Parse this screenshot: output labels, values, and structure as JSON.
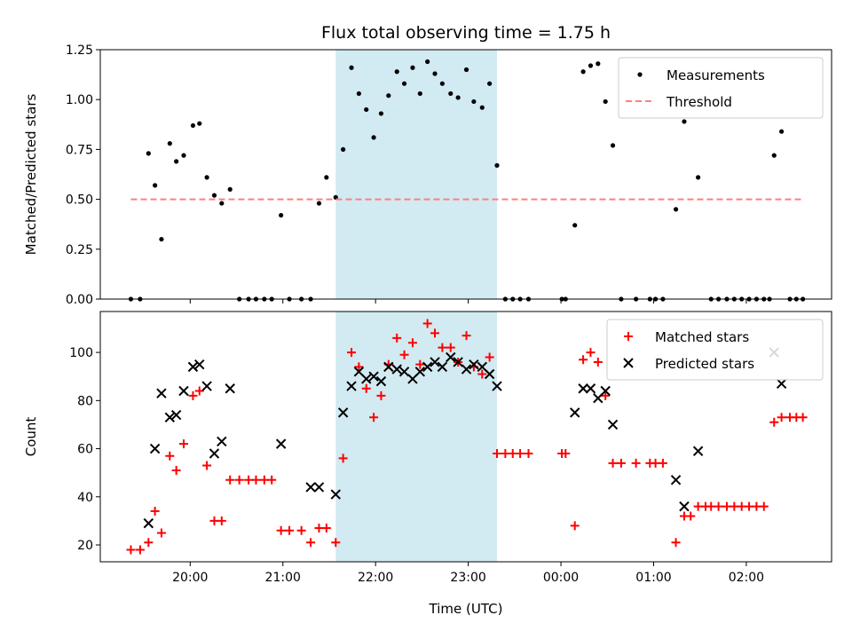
{
  "chart_data": {
    "type": "scatter",
    "title": "Flux total observing time = 1.75 h",
    "xlabel": "Time (UTC)",
    "x_axis": {
      "unit": "hours since 19:00 UTC (same night, crosses midnight)",
      "xlim": [
        0.03,
        7.92
      ],
      "ticks": [
        1,
        2,
        3,
        4,
        5,
        6,
        7
      ],
      "tick_labels": [
        "20:00",
        "21:00",
        "22:00",
        "23:00",
        "00:00",
        "01:00",
        "02:00"
      ]
    },
    "shaded_interval": {
      "x_start": 2.57,
      "x_end": 4.31,
      "color": "#add8e6"
    },
    "panels": [
      {
        "id": "ratio",
        "ylabel": "Matched/Predicted stars",
        "ylim": [
          0,
          1.25
        ],
        "yticks": [
          0.0,
          0.25,
          0.5,
          0.75,
          1.0,
          1.25
        ],
        "ytick_labels": [
          "0.00",
          "0.25",
          "0.50",
          "0.75",
          "1.00",
          "1.25"
        ],
        "legend": {
          "position": "top-right",
          "entries": [
            "Measurements",
            "Threshold"
          ]
        },
        "series": [
          {
            "name": "Measurements",
            "kind": "points",
            "color": "#000000",
            "points": [
              [
                0.36,
                0.0
              ],
              [
                0.46,
                0.0
              ],
              [
                0.55,
                0.73
              ],
              [
                0.62,
                0.57
              ],
              [
                0.69,
                0.3
              ],
              [
                0.78,
                0.78
              ],
              [
                0.85,
                0.69
              ],
              [
                0.93,
                0.72
              ],
              [
                1.03,
                0.87
              ],
              [
                1.1,
                0.88
              ],
              [
                1.18,
                0.61
              ],
              [
                1.26,
                0.52
              ],
              [
                1.34,
                0.48
              ],
              [
                1.43,
                0.55
              ],
              [
                1.53,
                0.0
              ],
              [
                1.63,
                0.0
              ],
              [
                1.71,
                0.0
              ],
              [
                1.8,
                0.0
              ],
              [
                1.88,
                0.0
              ],
              [
                1.98,
                0.42
              ],
              [
                2.07,
                0.0
              ],
              [
                2.2,
                0.0
              ],
              [
                2.3,
                0.0
              ],
              [
                2.39,
                0.48
              ],
              [
                2.47,
                0.61
              ],
              [
                2.57,
                0.51
              ],
              [
                2.65,
                0.75
              ],
              [
                2.74,
                1.16
              ],
              [
                2.82,
                1.03
              ],
              [
                2.9,
                0.95
              ],
              [
                2.98,
                0.81
              ],
              [
                3.06,
                0.93
              ],
              [
                3.14,
                1.02
              ],
              [
                3.23,
                1.14
              ],
              [
                3.31,
                1.08
              ],
              [
                3.4,
                1.16
              ],
              [
                3.48,
                1.03
              ],
              [
                3.56,
                1.19
              ],
              [
                3.64,
                1.13
              ],
              [
                3.72,
                1.08
              ],
              [
                3.81,
                1.03
              ],
              [
                3.89,
                1.01
              ],
              [
                3.98,
                1.15
              ],
              [
                4.06,
                0.99
              ],
              [
                4.15,
                0.96
              ],
              [
                4.23,
                1.08
              ],
              [
                4.31,
                0.67
              ],
              [
                4.4,
                0.0
              ],
              [
                4.48,
                0.0
              ],
              [
                4.56,
                0.0
              ],
              [
                4.65,
                0.0
              ],
              [
                5.01,
                0.0
              ],
              [
                5.05,
                0.0
              ],
              [
                5.15,
                0.37
              ],
              [
                5.24,
                1.14
              ],
              [
                5.32,
                1.17
              ],
              [
                5.4,
                1.18
              ],
              [
                5.48,
                0.99
              ],
              [
                5.56,
                0.77
              ],
              [
                5.65,
                0.0
              ],
              [
                5.81,
                0.0
              ],
              [
                5.96,
                0.0
              ],
              [
                6.02,
                0.0
              ],
              [
                6.1,
                0.0
              ],
              [
                6.24,
                0.45
              ],
              [
                6.33,
                0.89
              ],
              [
                6.48,
                0.61
              ],
              [
                6.62,
                0.0
              ],
              [
                6.7,
                0.0
              ],
              [
                6.79,
                0.0
              ],
              [
                6.87,
                0.0
              ],
              [
                6.95,
                0.0
              ],
              [
                7.03,
                0.0
              ],
              [
                7.11,
                0.0
              ],
              [
                7.19,
                0.0
              ],
              [
                7.25,
                0.0
              ],
              [
                7.3,
                0.72
              ],
              [
                7.38,
                0.84
              ],
              [
                7.47,
                0.0
              ],
              [
                7.54,
                0.0
              ],
              [
                7.61,
                0.0
              ]
            ]
          },
          {
            "name": "Threshold",
            "kind": "dashed-line",
            "color": "#ff7f7f",
            "points": [
              [
                0.36,
                0.5
              ],
              [
                7.61,
                0.5
              ]
            ]
          }
        ]
      },
      {
        "id": "count",
        "ylabel": "Count",
        "ylim": [
          13,
          117
        ],
        "yticks": [
          20,
          40,
          60,
          80,
          100
        ],
        "ytick_labels": [
          "20",
          "40",
          "60",
          "80",
          "100"
        ],
        "legend": {
          "position": "top-right",
          "entries": [
            "Matched stars",
            "Predicted stars"
          ]
        },
        "series": [
          {
            "name": "Matched stars",
            "kind": "plus",
            "color": "#ff0000",
            "points": [
              [
                0.36,
                18
              ],
              [
                0.46,
                18
              ],
              [
                0.55,
                21
              ],
              [
                0.62,
                34
              ],
              [
                0.69,
                25
              ],
              [
                0.78,
                57
              ],
              [
                0.85,
                51
              ],
              [
                0.93,
                62
              ],
              [
                1.03,
                82
              ],
              [
                1.1,
                84
              ],
              [
                1.18,
                53
              ],
              [
                1.26,
                30
              ],
              [
                1.34,
                30
              ],
              [
                1.43,
                47
              ],
              [
                1.53,
                47
              ],
              [
                1.63,
                47
              ],
              [
                1.71,
                47
              ],
              [
                1.8,
                47
              ],
              [
                1.88,
                47
              ],
              [
                1.98,
                26
              ],
              [
                2.07,
                26
              ],
              [
                2.2,
                26
              ],
              [
                2.3,
                21
              ],
              [
                2.39,
                27
              ],
              [
                2.47,
                27
              ],
              [
                2.57,
                21
              ],
              [
                2.65,
                56
              ],
              [
                2.74,
                100
              ],
              [
                2.82,
                94
              ],
              [
                2.9,
                85
              ],
              [
                2.98,
                73
              ],
              [
                3.06,
                82
              ],
              [
                3.14,
                95
              ],
              [
                3.23,
                106
              ],
              [
                3.31,
                99
              ],
              [
                3.4,
                104
              ],
              [
                3.48,
                95
              ],
              [
                3.56,
                112
              ],
              [
                3.64,
                108
              ],
              [
                3.72,
                102
              ],
              [
                3.81,
                102
              ],
              [
                3.89,
                96
              ],
              [
                3.98,
                107
              ],
              [
                4.06,
                94
              ],
              [
                4.15,
                91
              ],
              [
                4.23,
                98
              ],
              [
                4.31,
                58
              ],
              [
                4.4,
                58
              ],
              [
                4.48,
                58
              ],
              [
                4.56,
                58
              ],
              [
                4.65,
                58
              ],
              [
                5.01,
                58
              ],
              [
                5.05,
                58
              ],
              [
                5.15,
                28
              ],
              [
                5.24,
                97
              ],
              [
                5.32,
                100
              ],
              [
                5.4,
                96
              ],
              [
                5.48,
                82
              ],
              [
                5.56,
                54
              ],
              [
                5.65,
                54
              ],
              [
                5.81,
                54
              ],
              [
                5.96,
                54
              ],
              [
                6.02,
                54
              ],
              [
                6.1,
                54
              ],
              [
                6.24,
                21
              ],
              [
                6.33,
                32
              ],
              [
                6.4,
                32
              ],
              [
                6.48,
                36
              ],
              [
                6.56,
                36
              ],
              [
                6.62,
                36
              ],
              [
                6.7,
                36
              ],
              [
                6.79,
                36
              ],
              [
                6.87,
                36
              ],
              [
                6.95,
                36
              ],
              [
                7.03,
                36
              ],
              [
                7.11,
                36
              ],
              [
                7.19,
                36
              ],
              [
                7.3,
                71
              ],
              [
                7.38,
                73
              ],
              [
                7.47,
                73
              ],
              [
                7.54,
                73
              ],
              [
                7.61,
                73
              ]
            ]
          },
          {
            "name": "Predicted stars",
            "kind": "x",
            "color": "#000000",
            "points": [
              [
                0.55,
                29
              ],
              [
                0.62,
                60
              ],
              [
                0.69,
                83
              ],
              [
                0.78,
                73
              ],
              [
                0.85,
                74
              ],
              [
                0.93,
                84
              ],
              [
                1.03,
                94
              ],
              [
                1.1,
                95
              ],
              [
                1.18,
                86
              ],
              [
                1.26,
                58
              ],
              [
                1.34,
                63
              ],
              [
                1.43,
                85
              ],
              [
                1.98,
                62
              ],
              [
                2.3,
                44
              ],
              [
                2.39,
                44
              ],
              [
                2.57,
                41
              ],
              [
                2.65,
                75
              ],
              [
                2.74,
                86
              ],
              [
                2.82,
                92
              ],
              [
                2.9,
                89
              ],
              [
                2.98,
                90
              ],
              [
                3.06,
                88
              ],
              [
                3.14,
                94
              ],
              [
                3.23,
                93
              ],
              [
                3.31,
                92
              ],
              [
                3.4,
                89
              ],
              [
                3.48,
                92
              ],
              [
                3.56,
                94
              ],
              [
                3.64,
                96
              ],
              [
                3.72,
                94
              ],
              [
                3.81,
                98
              ],
              [
                3.89,
                96
              ],
              [
                3.98,
                93
              ],
              [
                4.06,
                95
              ],
              [
                4.15,
                94
              ],
              [
                4.23,
                91
              ],
              [
                4.31,
                86
              ],
              [
                5.15,
                75
              ],
              [
                5.24,
                85
              ],
              [
                5.32,
                85
              ],
              [
                5.4,
                81
              ],
              [
                5.48,
                84
              ],
              [
                5.56,
                70
              ],
              [
                6.24,
                47
              ],
              [
                6.33,
                36
              ],
              [
                6.48,
                59
              ],
              [
                7.3,
                100
              ],
              [
                7.38,
                87
              ]
            ]
          }
        ]
      }
    ]
  }
}
